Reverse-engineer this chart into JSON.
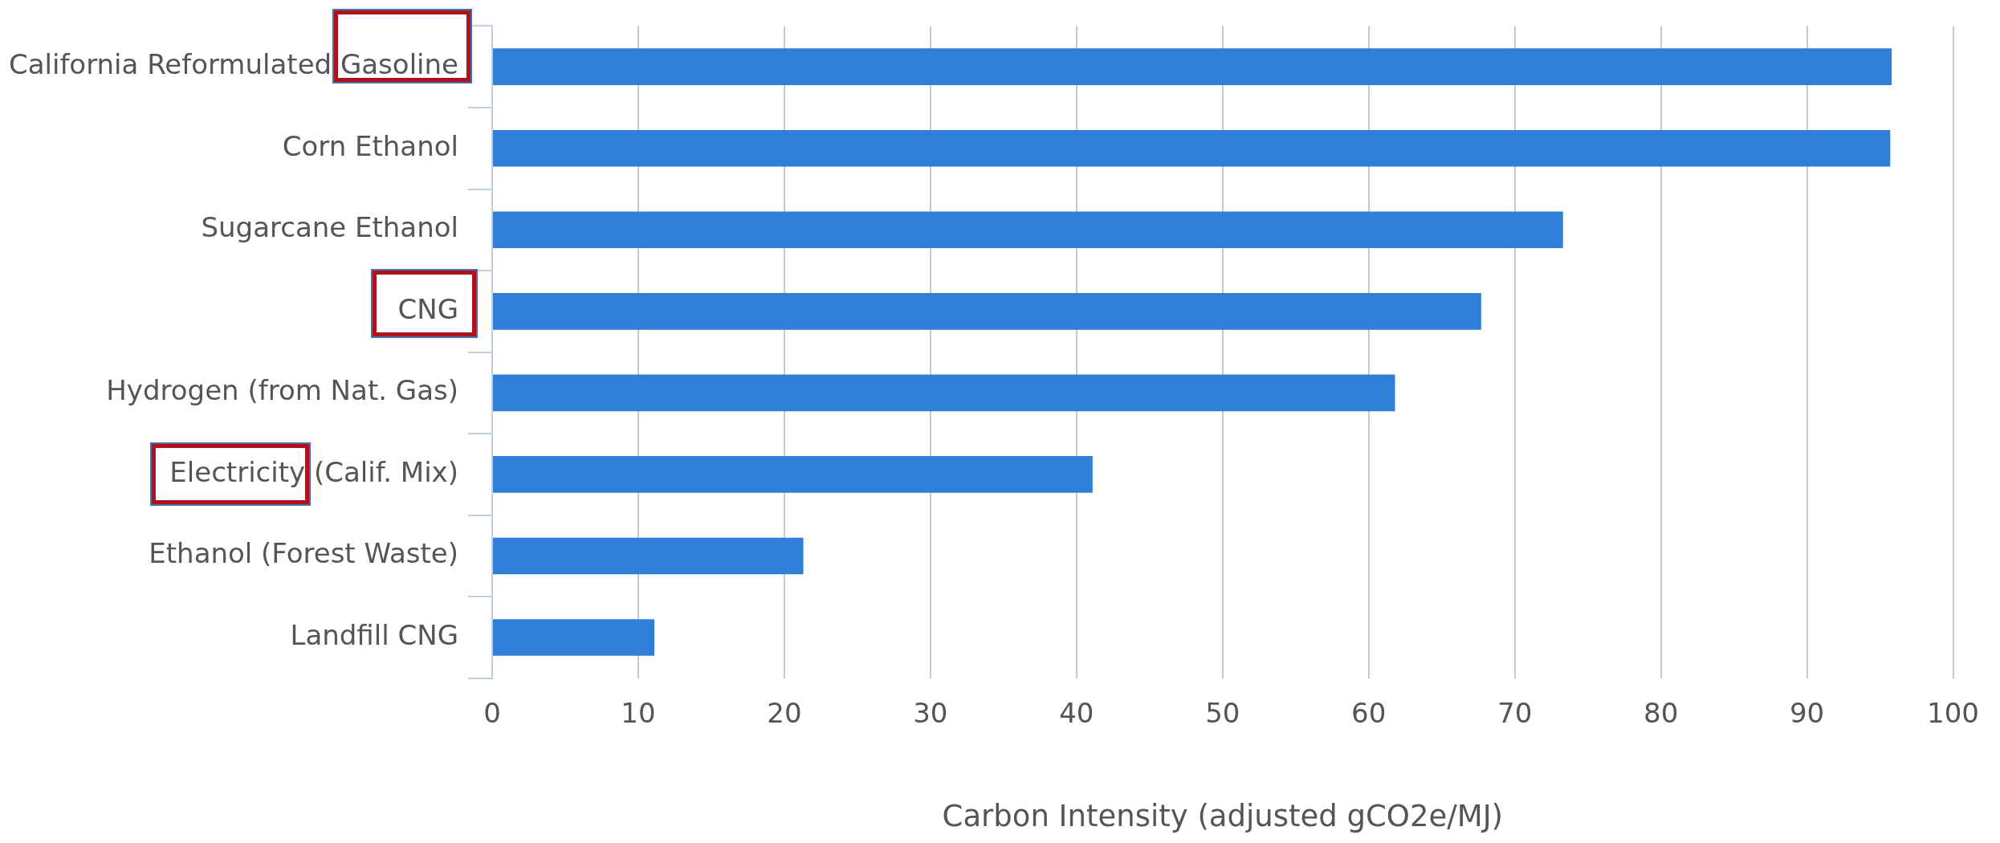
{
  "chart_data": {
    "type": "bar",
    "orientation": "horizontal",
    "xlabel": "Carbon Intensity (adjusted gCO2e/MJ)",
    "categories": [
      "California Reformulated Gasoline",
      "Corn Ethanol",
      "Sugarcane Ethanol",
      "CNG",
      "Hydrogen (from Nat. Gas)",
      "Electricity (Calif. Mix)",
      "Ethanol (Forest Waste)",
      "Landfill CNG"
    ],
    "values": [
      95.8,
      95.7,
      73.3,
      67.7,
      61.8,
      41.1,
      21.3,
      11.1
    ],
    "color": "#2f7ed8",
    "xlim": [
      0,
      100
    ],
    "xticks": [
      0,
      10,
      20,
      30,
      40,
      50,
      60,
      70,
      80,
      90,
      100
    ],
    "grid": "x",
    "legend": false
  }
}
